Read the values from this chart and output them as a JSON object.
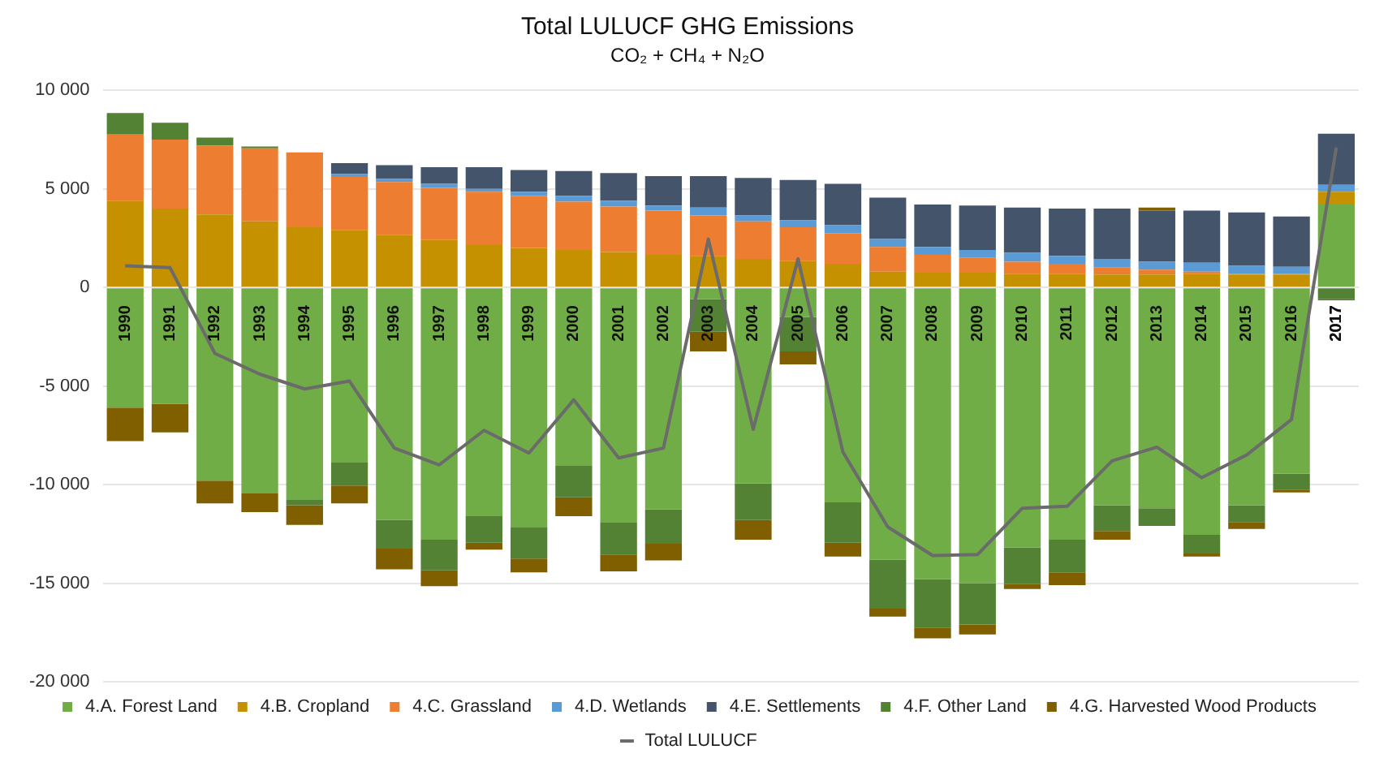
{
  "chart_data": {
    "type": "bar",
    "title": "Total LULUCF GHG Emissions",
    "subtitle": "CO₂ + CH₄ + N₂O",
    "categories": [
      "1990",
      "1991",
      "1992",
      "1993",
      "1994",
      "1995",
      "1996",
      "1997",
      "1998",
      "1999",
      "2000",
      "2001",
      "2002",
      "2003",
      "2004",
      "2005",
      "2006",
      "2007",
      "2008",
      "2009",
      "2010",
      "2011",
      "2012",
      "2013",
      "2014",
      "2015",
      "2016",
      "2017"
    ],
    "stacked": true,
    "series": [
      {
        "name": "4.A. Forest Land",
        "color": "#70ad47",
        "values": [
          -6100,
          -5900,
          -9800,
          -10450,
          -10750,
          -8850,
          -11800,
          -12800,
          -11600,
          -12150,
          -9050,
          -11900,
          -11250,
          -600,
          -9950,
          -1500,
          -10900,
          -13800,
          -14800,
          -15000,
          -13200,
          -12800,
          -11050,
          -11200,
          -12550,
          -11050,
          -9450,
          4200
        ]
      },
      {
        "name": "4.B. Cropland",
        "color": "#c59100",
        "values": [
          4400,
          4000,
          3700,
          3350,
          3050,
          2900,
          2650,
          2400,
          2150,
          2000,
          1900,
          1800,
          1650,
          1600,
          1450,
          1350,
          1200,
          800,
          750,
          750,
          700,
          700,
          650,
          650,
          700,
          650,
          650,
          650
        ]
      },
      {
        "name": "4.C. Grassland",
        "color": "#ed7d31",
        "values": [
          3350,
          3500,
          3500,
          3700,
          3800,
          2700,
          2700,
          2650,
          2700,
          2650,
          2450,
          2300,
          2250,
          2050,
          1900,
          1700,
          1550,
          1250,
          900,
          750,
          600,
          500,
          350,
          250,
          100,
          50,
          50,
          0
        ]
      },
      {
        "name": "4.D. Wetlands",
        "color": "#5b9bd5",
        "values": [
          0,
          0,
          0,
          0,
          0,
          150,
          150,
          200,
          150,
          200,
          300,
          300,
          250,
          400,
          300,
          350,
          400,
          400,
          400,
          400,
          450,
          400,
          450,
          400,
          450,
          400,
          350,
          350
        ]
      },
      {
        "name": "4.E. Settlements",
        "color": "#44546a",
        "values": [
          0,
          0,
          0,
          0,
          0,
          550,
          700,
          850,
          1100,
          1100,
          1250,
          1400,
          1500,
          1600,
          1900,
          2050,
          2100,
          2100,
          2150,
          2250,
          2300,
          2400,
          2550,
          2600,
          2650,
          2700,
          2550,
          2600
        ]
      },
      {
        "name": "4.F. Other Land",
        "color": "#548235",
        "values": [
          1100,
          850,
          400,
          100,
          -300,
          -1200,
          -1450,
          -1550,
          -1350,
          -1600,
          -1600,
          -1650,
          -1750,
          -1650,
          -1850,
          -1750,
          -2050,
          -2500,
          -2450,
          -2100,
          -1850,
          -1650,
          -1300,
          -900,
          -950,
          -850,
          -800,
          -600
        ]
      },
      {
        "name": "4.G. Harvested Wood Products",
        "color": "#7f5f00",
        "values": [
          -1700,
          -1450,
          -1150,
          -950,
          -1000,
          -900,
          -1050,
          -800,
          -350,
          -700,
          -950,
          -850,
          -850,
          -1000,
          -1000,
          -650,
          -700,
          -400,
          -550,
          -500,
          -250,
          -650,
          -450,
          150,
          -150,
          -350,
          -150,
          -50
        ]
      },
      {
        "name": "Total LULUCF",
        "type": "line",
        "color": "#6b6b6b",
        "values": [
          1100,
          1000,
          -3350,
          -4400,
          -5150,
          -4750,
          -8150,
          -9000,
          -7250,
          -8400,
          -5700,
          -8650,
          -8150,
          2450,
          -7200,
          1450,
          -8350,
          -12150,
          -13600,
          -13550,
          -11200,
          -11100,
          -8800,
          -8100,
          -9650,
          -8500,
          -6700,
          7100
        ]
      }
    ],
    "ylim": [
      -20000,
      10000
    ],
    "yticks": [
      {
        "value": -20000,
        "label": "-20 000"
      },
      {
        "value": -15000,
        "label": "-15 000"
      },
      {
        "value": -10000,
        "label": "-10 000"
      },
      {
        "value": -5000,
        "label": "-5 000"
      },
      0,
      {
        "value": 5000,
        "label": "5 000"
      },
      {
        "value": 10000,
        "label": "10 000"
      }
    ],
    "grid": "y",
    "legend": "bottom",
    "marker": "none",
    "line_style": "solid"
  }
}
